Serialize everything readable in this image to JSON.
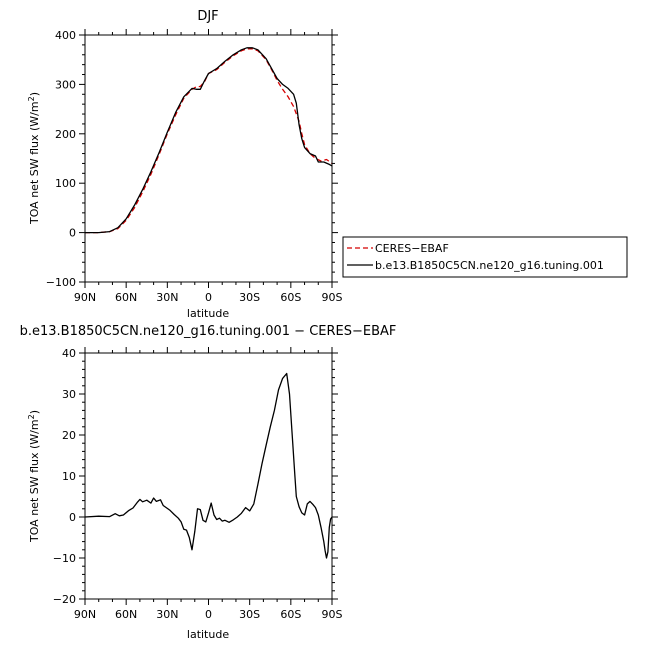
{
  "chart_data": [
    {
      "type": "line",
      "title": "DJF",
      "xlabel": "latitude",
      "ylabel": "TOA net SW flux (W/m²)",
      "ylabel_main": "TOA net SW flux (W/m",
      "ylabel_sup": "2",
      "ylabel_end": ")",
      "xlim": [
        -90,
        90
      ],
      "ylim": [
        -100,
        400
      ],
      "xticks": [
        -90,
        -60,
        -30,
        0,
        30,
        60,
        90
      ],
      "xtick_labels": [
        "90N",
        "60N",
        "30N",
        "0",
        "30S",
        "60S",
        "90S"
      ],
      "yticks": [
        -100,
        0,
        100,
        200,
        300,
        400
      ],
      "ytick_labels": [
        "−100",
        "0",
        "100",
        "200",
        "300",
        "400"
      ],
      "series": [
        {
          "name": "CERES−EBAF",
          "color": "#d40000",
          "dash": "dashed",
          "x": [
            -90,
            -80,
            -72,
            -66,
            -60,
            -54,
            -48,
            -42,
            -36,
            -30,
            -24,
            -18,
            -12,
            -9,
            -6,
            -3,
            0,
            6,
            12,
            18,
            24,
            28,
            32,
            36,
            42,
            46,
            50,
            54,
            58,
            62,
            66,
            68,
            70,
            74,
            78,
            82,
            86,
            90
          ],
          "y": [
            0,
            0,
            2,
            8,
            25,
            50,
            82,
            118,
            158,
            200,
            238,
            272,
            290,
            295,
            296,
            305,
            322,
            330,
            345,
            358,
            368,
            372,
            372,
            368,
            350,
            330,
            308,
            290,
            275,
            255,
            225,
            200,
            178,
            160,
            150,
            145,
            148,
            140
          ]
        },
        {
          "name": "b.e13.B1850C5CN.ne120_g16.tuning.001",
          "color": "#000000",
          "dash": "solid",
          "x": [
            -90,
            -80,
            -72,
            -66,
            -60,
            -54,
            -48,
            -42,
            -36,
            -30,
            -24,
            -18,
            -12,
            -9,
            -6,
            -3,
            0,
            6,
            12,
            18,
            24,
            28,
            32,
            36,
            42,
            46,
            50,
            54,
            58,
            62,
            64,
            66,
            68,
            70,
            74,
            78,
            80,
            84,
            88,
            90
          ],
          "y": [
            0,
            0,
            2,
            10,
            28,
            55,
            87,
            123,
            162,
            203,
            243,
            275,
            292,
            290,
            290,
            307,
            322,
            332,
            347,
            360,
            370,
            374,
            374,
            370,
            352,
            332,
            312,
            300,
            292,
            280,
            262,
            218,
            190,
            172,
            160,
            155,
            143,
            143,
            138,
            135
          ]
        }
      ],
      "legend": "right"
    },
    {
      "type": "line",
      "title": "b.e13.B1850C5CN.ne120_g16.tuning.001 − CERES−EBAF",
      "xlabel": "latitude",
      "ylabel": "TOA net SW flux (W/m²)",
      "ylabel_main": "TOA net SW flux (W/m",
      "ylabel_sup": "2",
      "ylabel_end": ")",
      "xlim": [
        -90,
        90
      ],
      "ylim": [
        -20,
        40
      ],
      "xticks": [
        -90,
        -60,
        -30,
        0,
        30,
        60,
        90
      ],
      "xtick_labels": [
        "90N",
        "60N",
        "30N",
        "0",
        "30S",
        "60S",
        "90S"
      ],
      "yticks": [
        -20,
        -10,
        0,
        10,
        20,
        30,
        40
      ],
      "ytick_labels": [
        "−20",
        "−10",
        "0",
        "10",
        "20",
        "30",
        "40"
      ],
      "series": [
        {
          "name": "",
          "color": "#000000",
          "dash": "solid",
          "x": [
            -90,
            -80,
            -72,
            -68,
            -65,
            -62,
            -58,
            -55,
            -52,
            -50,
            -48,
            -45,
            -42,
            -40,
            -38,
            -35,
            -33,
            -30,
            -28,
            -25,
            -22,
            -20,
            -18,
            -16,
            -14,
            -12,
            -10,
            -8,
            -6,
            -4,
            -2,
            0,
            2,
            4,
            6,
            8,
            10,
            12,
            15,
            18,
            21,
            24,
            27,
            30,
            33,
            36,
            39,
            42,
            45,
            48,
            51,
            54,
            57,
            59,
            61,
            63,
            64,
            66,
            68,
            70,
            72,
            74,
            76,
            78,
            80,
            82,
            84,
            85,
            86,
            87,
            88,
            89,
            90
          ],
          "y": [
            0,
            0.2,
            0.1,
            0.8,
            0.3,
            0.5,
            1.6,
            2.2,
            3.5,
            4.3,
            3.7,
            4.1,
            3.4,
            4.6,
            3.8,
            4.2,
            2.8,
            2.1,
            1.6,
            0.6,
            -0.3,
            -1.2,
            -3.0,
            -3.2,
            -5.0,
            -8.0,
            -3.5,
            2.0,
            1.8,
            -0.8,
            -1.2,
            1.0,
            3.4,
            0.5,
            -0.6,
            -0.3,
            -1.0,
            -0.8,
            -1.3,
            -0.7,
            0.0,
            0.9,
            2.3,
            1.5,
            3.2,
            8.0,
            13.0,
            17.5,
            22.0,
            26.0,
            31.0,
            33.8,
            35.0,
            30.0,
            20.0,
            10.0,
            5.0,
            2.5,
            1.0,
            0.5,
            3.2,
            3.8,
            3.1,
            2.3,
            0.5,
            -2.5,
            -6.0,
            -8.2,
            -10.0,
            -8.5,
            -2.5,
            -0.5,
            0
          ]
        }
      ]
    }
  ]
}
